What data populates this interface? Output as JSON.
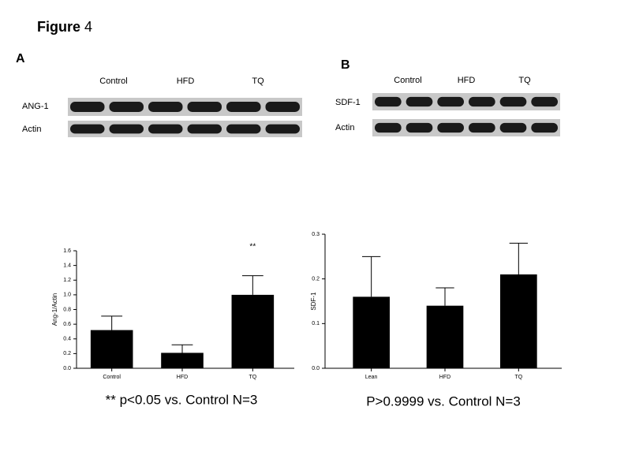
{
  "figure": {
    "title": "Figure",
    "number": "4"
  },
  "blots": [
    {
      "label": "A",
      "columns": [
        "Control",
        "HFD",
        "TQ"
      ],
      "rows": [
        "ANG-1",
        "Actin"
      ]
    },
    {
      "label": "B",
      "columns": [
        "Control",
        "HFD",
        "TQ"
      ],
      "rows": [
        "SDF-1",
        "Actin"
      ]
    }
  ],
  "chart_data": [
    {
      "type": "bar",
      "y_label": "Ang-1/Actin",
      "categories": [
        "Control",
        "HFD",
        "TQ"
      ],
      "values": [
        0.52,
        0.21,
        1.0
      ],
      "errors": [
        0.19,
        0.11,
        0.26
      ],
      "color": "#000000",
      "annotations": [
        null,
        null,
        "**"
      ],
      "ylim": [
        0,
        1.6
      ],
      "yticks": [
        {
          "value": 0,
          "label": "0.0"
        },
        {
          "value": 0.2,
          "label": "0.2"
        },
        {
          "value": 0.4,
          "label": "0.4"
        },
        {
          "value": 0.6,
          "label": "0.6"
        },
        {
          "value": 0.8,
          "label": "0.8"
        },
        {
          "value": 1,
          "label": "1.0"
        },
        {
          "value": 1.2,
          "label": "1.2"
        },
        {
          "value": 1.4,
          "label": "1.4"
        },
        {
          "value": 1.6,
          "label": "1.6"
        }
      ],
      "caption": "** p<0.05 vs. Control N=3"
    },
    {
      "type": "bar",
      "y_label": "SDF-1",
      "categories": [
        "Lean",
        "HFD",
        "TQ"
      ],
      "values": [
        0.16,
        0.14,
        0.21
      ],
      "errors": [
        0.09,
        0.04,
        0.07
      ],
      "color": "#000000",
      "ylim": [
        0,
        0.3
      ],
      "yticks": [
        {
          "value": 0,
          "label": "0.0"
        },
        0.1,
        0.2,
        0.3
      ],
      "caption": "P>0.9999 vs. Control N=3"
    }
  ]
}
